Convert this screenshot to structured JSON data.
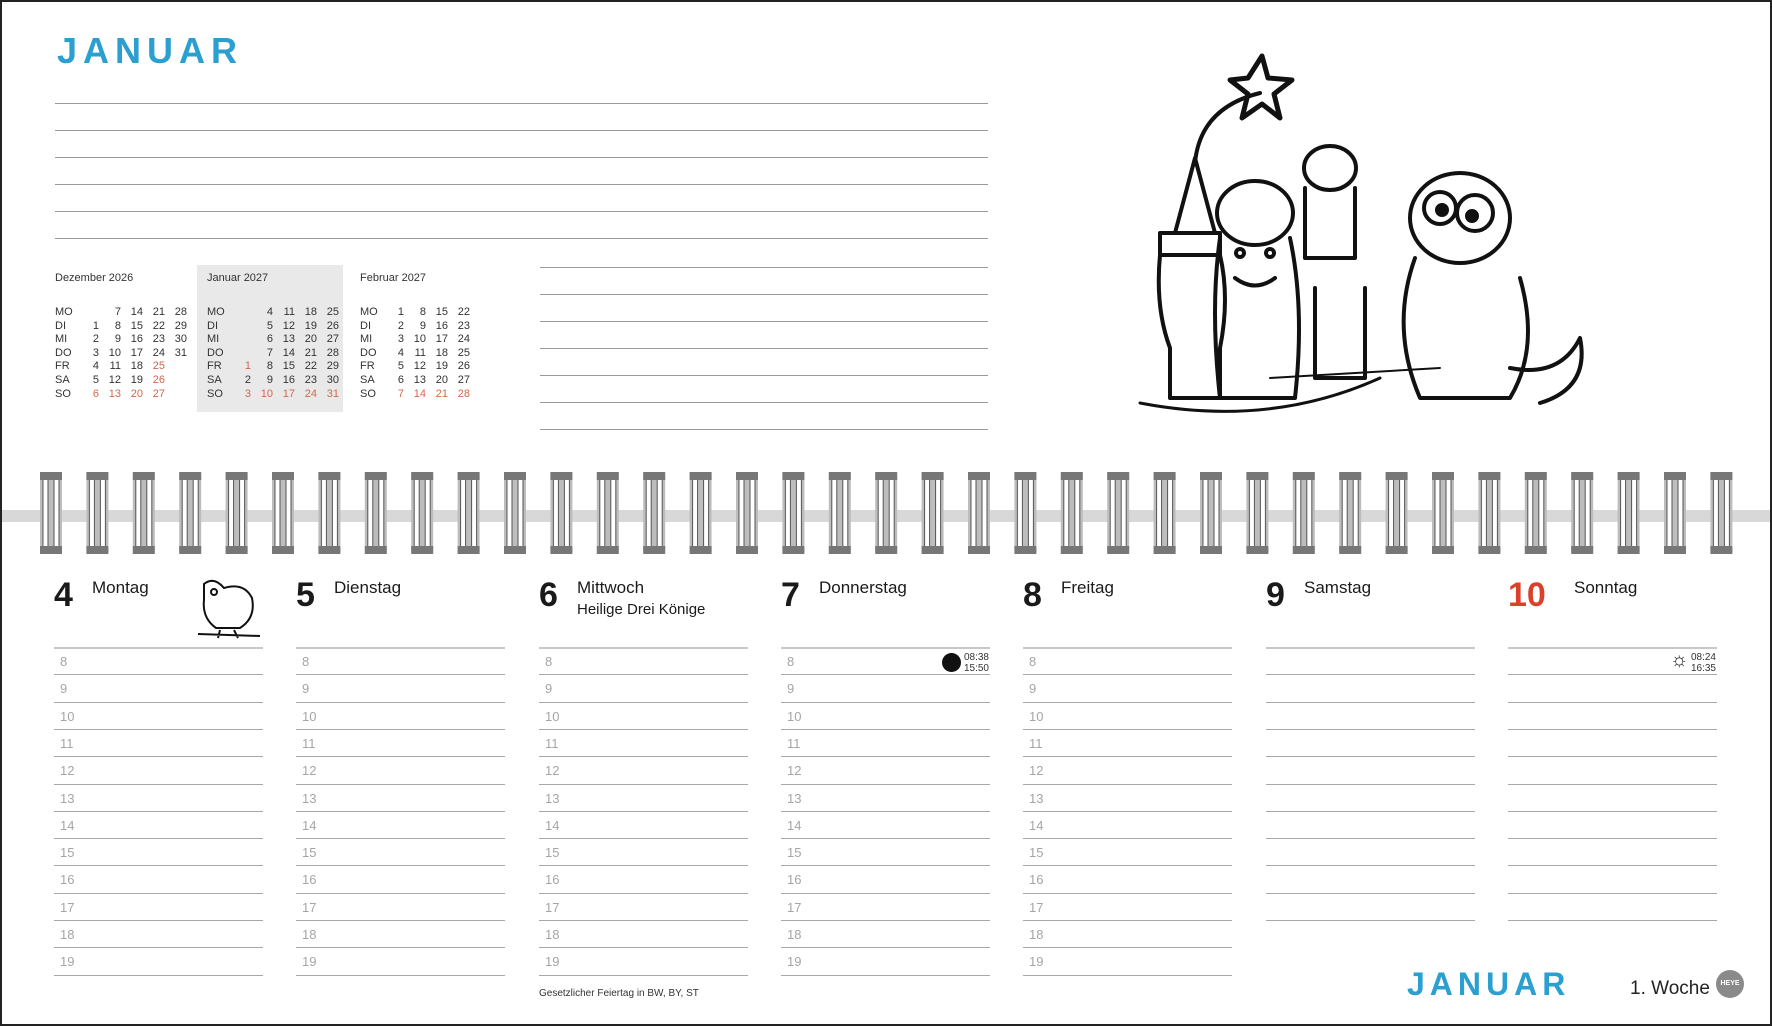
{
  "header": {
    "title": "JANUAR"
  },
  "mini_calendars": [
    {
      "title": "Dezember 2026",
      "current": false,
      "rows": [
        {
          "label": "MO",
          "days": [
            "",
            "7",
            "14",
            "21",
            "28"
          ],
          "red": []
        },
        {
          "label": "DI",
          "days": [
            "1",
            "8",
            "15",
            "22",
            "29"
          ],
          "red": []
        },
        {
          "label": "MI",
          "days": [
            "2",
            "9",
            "16",
            "23",
            "30"
          ],
          "red": []
        },
        {
          "label": "DO",
          "days": [
            "3",
            "10",
            "17",
            "24",
            "31"
          ],
          "red": []
        },
        {
          "label": "FR",
          "days": [
            "4",
            "11",
            "18",
            "25",
            ""
          ],
          "red": [
            3
          ]
        },
        {
          "label": "SA",
          "days": [
            "5",
            "12",
            "19",
            "26",
            ""
          ],
          "red": [
            3
          ]
        },
        {
          "label": "SO",
          "days": [
            "6",
            "13",
            "20",
            "27",
            ""
          ],
          "red": [
            0,
            1,
            2,
            3
          ]
        }
      ]
    },
    {
      "title": "Januar 2027",
      "current": true,
      "rows": [
        {
          "label": "MO",
          "days": [
            "",
            "4",
            "11",
            "18",
            "25"
          ],
          "red": []
        },
        {
          "label": "DI",
          "days": [
            "",
            "5",
            "12",
            "19",
            "26"
          ],
          "red": []
        },
        {
          "label": "MI",
          "days": [
            "",
            "6",
            "13",
            "20",
            "27"
          ],
          "red": [
            1
          ]
        },
        {
          "label": "DO",
          "days": [
            "",
            "7",
            "14",
            "21",
            "28"
          ],
          "red": []
        },
        {
          "label": "FR",
          "days": [
            "1",
            "8",
            "15",
            "22",
            "29"
          ],
          "red": [
            0
          ]
        },
        {
          "label": "SA",
          "days": [
            "2",
            "9",
            "16",
            "23",
            "30"
          ],
          "red": []
        },
        {
          "label": "SO",
          "days": [
            "3",
            "10",
            "17",
            "24",
            "31"
          ],
          "red": [
            0,
            1,
            2,
            3,
            4
          ]
        }
      ]
    },
    {
      "title": "Februar 2027",
      "current": false,
      "rows": [
        {
          "label": "MO",
          "days": [
            "1",
            "8",
            "15",
            "22"
          ],
          "red": []
        },
        {
          "label": "DI",
          "days": [
            "2",
            "9",
            "16",
            "23"
          ],
          "red": []
        },
        {
          "label": "MI",
          "days": [
            "3",
            "10",
            "17",
            "24"
          ],
          "red": []
        },
        {
          "label": "DO",
          "days": [
            "4",
            "11",
            "18",
            "25"
          ],
          "red": []
        },
        {
          "label": "FR",
          "days": [
            "5",
            "12",
            "19",
            "26"
          ],
          "red": []
        },
        {
          "label": "SA",
          "days": [
            "6",
            "13",
            "20",
            "27"
          ],
          "red": []
        },
        {
          "label": "SO",
          "days": [
            "7",
            "14",
            "21",
            "28"
          ],
          "red": [
            0,
            1,
            2,
            3
          ]
        }
      ]
    }
  ],
  "days": [
    {
      "num": "4",
      "name": "Montag",
      "sub": "",
      "hours": [
        "8",
        "9",
        "10",
        "11",
        "12",
        "13",
        "14",
        "15",
        "16",
        "17",
        "18",
        "19"
      ],
      "red": false
    },
    {
      "num": "5",
      "name": "Dienstag",
      "sub": "",
      "hours": [
        "8",
        "9",
        "10",
        "11",
        "12",
        "13",
        "14",
        "15",
        "16",
        "17",
        "18",
        "19"
      ],
      "red": false
    },
    {
      "num": "6",
      "name": "Mittwoch",
      "sub": "Heilige Drei Könige",
      "hours": [
        "8",
        "9",
        "10",
        "11",
        "12",
        "13",
        "14",
        "15",
        "16",
        "17",
        "18",
        "19"
      ],
      "red": false
    },
    {
      "num": "7",
      "name": "Donnerstag",
      "sub": "",
      "hours": [
        "8",
        "9",
        "10",
        "11",
        "12",
        "13",
        "14",
        "15",
        "16",
        "17",
        "18",
        "19"
      ],
      "red": false,
      "moon": {
        "icon": "new-moon-icon",
        "rise": "08:38",
        "set": "15:50"
      }
    },
    {
      "num": "8",
      "name": "Freitag",
      "sub": "",
      "hours": [
        "8",
        "9",
        "10",
        "11",
        "12",
        "13",
        "14",
        "15",
        "16",
        "17",
        "18",
        "19"
      ],
      "red": false
    },
    {
      "num": "9",
      "name": "Samstag",
      "sub": "",
      "hours": [],
      "red": false
    },
    {
      "num": "10",
      "name": "Sonntag",
      "sub": "",
      "hours": [],
      "red": true,
      "sun": {
        "icon": "sun-icon",
        "rise": "08:24",
        "set": "16:35"
      }
    }
  ],
  "footer": {
    "note": "Gesetzlicher Feiertag in BW, BY, ST",
    "title": "JANUAR",
    "week": "1. Woche",
    "logo": "HEYE"
  },
  "colors": {
    "accent": "#2a9fd0",
    "sunday": "#d9412b",
    "holiday": "#d4674a"
  }
}
